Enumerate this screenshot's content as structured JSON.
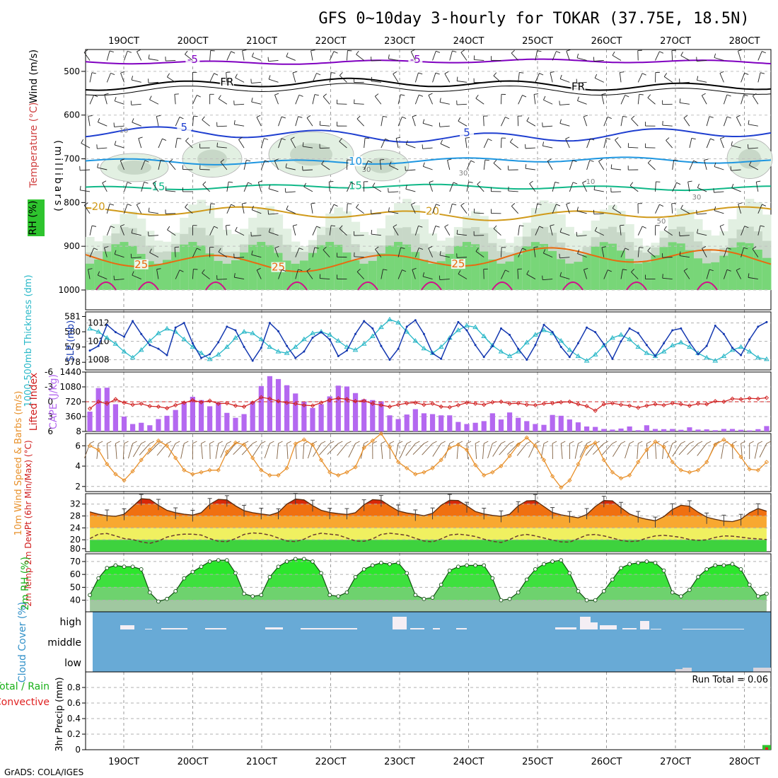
{
  "header": {
    "title": "GFS 0~10day 3-hourly for TOKAR (37.75E, 18.5N)",
    "credit": "GrADS: COLA/IGES"
  },
  "time_axis": {
    "labels": [
      "19OCT",
      "20OCT",
      "21OCT",
      "22OCT",
      "23OCT",
      "24OCT",
      "25OCT",
      "26OCT",
      "27OCT",
      "28OCT"
    ],
    "steps": 80
  },
  "colors": {
    "purple": "#8000c0",
    "black": "#000000",
    "blue": "#1f3fd0",
    "skyblue": "#1e96e0",
    "teal": "#10b888",
    "gold": "#d09a1a",
    "orange": "#e86a10",
    "magenta": "#d0108a",
    "cyan": "#2ab8c8",
    "darkblue": "#1438b0",
    "cape": "#b468f0",
    "li": "#d02020",
    "wind": "#e8902a",
    "barb": "#806040",
    "rh_green": "#2ee02e",
    "cloud_blue": "#68aad6",
    "cloud_white": "#f4eef4"
  },
  "chart_data": [
    {
      "id": "upper_air",
      "type": "area",
      "axis_title_wind": "Wind (m/s)",
      "axis_title_temp": "Temperature (°C)",
      "axis_title_rh": "RH (%)",
      "axis_title_p": "(millibars)",
      "y_ticks": [
        "500",
        "600",
        "700",
        "800",
        "900",
        "1000"
      ],
      "ylim": [
        1000,
        450
      ],
      "isotherms": [
        {
          "label": "-5",
          "p": 478,
          "amp": 6,
          "labels_at": [
            12,
            38
          ],
          "color": "purple"
        },
        {
          "label": "FR",
          "p": 530,
          "amp": 14,
          "labels_at": [
            16,
            57
          ],
          "color": "black"
        },
        {
          "label": "5",
          "p": 645,
          "amp": 18,
          "labels_at": [
            11,
            44
          ],
          "color": "blue"
        },
        {
          "label": "10",
          "p": 705,
          "amp": 9,
          "labels_at": [
            31
          ],
          "color": "skyblue"
        },
        {
          "label": "15",
          "p": 765,
          "amp": 7,
          "labels_at": [
            8,
            31
          ],
          "color": "teal"
        },
        {
          "label": "20",
          "p": 825,
          "amp": 16,
          "labels_at": [
            1,
            40
          ],
          "color": "gold"
        },
        {
          "label": "25",
          "p": 930,
          "amp": 28,
          "labels_at": [
            6,
            22,
            43
          ],
          "color": "orange"
        }
      ],
      "rh_labels": [
        "10",
        "30",
        "30",
        "10",
        "30",
        "50"
      ]
    },
    {
      "id": "thickness_slp",
      "type": "line",
      "ylabel_left": "1000-500mb Thickness (dm)",
      "ylabel_right": "SLP (mb)",
      "left_ticks": [
        "581",
        "580",
        "579",
        "578"
      ],
      "right_ticks": [
        "1012",
        "1010",
        "1008"
      ],
      "series": [
        {
          "name": "Thickness (dm)",
          "color": "cyan",
          "ylim": [
            577.5,
            581.3
          ],
          "values": [
            580.2,
            580.0,
            579.6,
            579.2,
            578.7,
            578.3,
            578.8,
            579.4,
            579.9,
            580.2,
            580.0,
            579.5,
            579.0,
            578.6,
            578.2,
            578.5,
            579.0,
            579.6,
            580.0,
            579.9,
            579.5,
            579.0,
            578.7,
            578.6,
            579.0,
            579.5,
            579.9,
            580.0,
            579.8,
            579.4,
            579.0,
            578.8,
            579.2,
            579.7,
            580.3,
            580.8,
            580.6,
            580.0,
            579.4,
            578.9,
            578.6,
            579.0,
            579.6,
            580.1,
            580.4,
            580.3,
            579.7,
            579.1,
            578.7,
            578.4,
            578.7,
            579.3,
            579.8,
            580.1,
            579.9,
            579.4,
            578.8,
            578.4,
            578.1,
            578.5,
            579.1,
            579.6,
            579.8,
            579.5,
            579.0,
            578.6,
            578.4,
            578.7,
            579.1,
            579.3,
            579.0,
            578.6,
            578.3,
            578.1,
            578.4,
            578.8,
            579.0,
            578.7,
            578.3,
            578.2
          ]
        },
        {
          "name": "SLP (mb)",
          "color": "darkblue",
          "ylim": [
            1006.9,
            1013.2
          ],
          "values": [
            1009.0,
            1009.5,
            1011.8,
            1011.0,
            1010.5,
            1012.2,
            1010.8,
            1009.6,
            1009.2,
            1008.5,
            1011.5,
            1012.0,
            1009.8,
            1008.2,
            1008.6,
            1009.9,
            1011.6,
            1011.2,
            1009.4,
            1007.9,
            1009.3,
            1012.0,
            1011.1,
            1009.5,
            1008.2,
            1008.9,
            1010.4,
            1011.0,
            1010.2,
            1008.4,
            1009.0,
            1010.8,
            1012.2,
            1011.4,
            1009.5,
            1008.0,
            1009.2,
            1011.6,
            1012.3,
            1010.8,
            1008.7,
            1008.1,
            1010.3,
            1012.1,
            1011.2,
            1009.6,
            1008.3,
            1009.5,
            1011.4,
            1010.7,
            1009.2,
            1008.0,
            1009.6,
            1011.8,
            1011.0,
            1009.4,
            1008.3,
            1009.8,
            1011.5,
            1011.0,
            1009.7,
            1008.1,
            1010.0,
            1011.4,
            1010.9,
            1009.6,
            1008.4,
            1009.8,
            1011.2,
            1011.4,
            1009.9,
            1008.6,
            1009.5,
            1011.7,
            1010.8,
            1009.3,
            1008.5,
            1010.2,
            1011.6,
            1012.1
          ]
        }
      ]
    },
    {
      "id": "li_cape",
      "type": "bar",
      "ylabel_left": "Lifted Index",
      "ylabel_right": "CAPE (J/kg)",
      "li_ticks": [
        "-6",
        "-3",
        "0",
        "3",
        "6"
      ],
      "cape_ticks": [
        "1440",
        "1080",
        "720",
        "360",
        "8"
      ],
      "series": [
        {
          "name": "CAPE (J/kg)",
          "color": "cape",
          "ylim": [
            0,
            1440
          ],
          "values": [
            480,
            1050,
            1060,
            660,
            360,
            180,
            210,
            150,
            300,
            380,
            520,
            720,
            840,
            760,
            610,
            700,
            450,
            330,
            420,
            720,
            1100,
            1340,
            1270,
            1120,
            920,
            720,
            570,
            660,
            850,
            1110,
            1090,
            930,
            780,
            760,
            730,
            390,
            300,
            410,
            540,
            440,
            420,
            390,
            390,
            230,
            180,
            210,
            250,
            440,
            290,
            460,
            330,
            250,
            180,
            160,
            400,
            380,
            290,
            220,
            120,
            110,
            60,
            45,
            70,
            120,
            30,
            150,
            60,
            55,
            60,
            40,
            100,
            45,
            50,
            30,
            60,
            60,
            40,
            25,
            55,
            130
          ]
        },
        {
          "name": "Lifted Index",
          "color": "li",
          "ylim": [
            -6,
            6
          ],
          "values": [
            1.4,
            0.0,
            0.4,
            -0.5,
            0.2,
            0.6,
            0.4,
            0.9,
            1.0,
            1.3,
            0.7,
            0.2,
            -0.3,
            0.1,
            -0.2,
            0.4,
            0.3,
            0.8,
            1.0,
            0.2,
            -0.9,
            -0.6,
            -0.1,
            0.2,
            0.4,
            0.7,
            0.8,
            0.2,
            -0.4,
            -0.7,
            -0.5,
            -0.1,
            -0.2,
            0.4,
            0.7,
            1.0,
            0.6,
            0.3,
            0.2,
            0.6,
            0.4,
            1.0,
            1.1,
            0.7,
            0.2,
            0.4,
            0.6,
            0.1,
            0.0,
            0.4,
            0.3,
            0.6,
            0.7,
            0.4,
            0.3,
            0.1,
            0.0,
            0.5,
            0.9,
            1.8,
            0.5,
            0.3,
            0.6,
            0.8,
            1.2,
            0.8,
            0.5,
            0.7,
            0.3,
            0.5,
            0.8,
            0.4,
            0.5,
            -0.1,
            0.0,
            -0.6,
            -0.5,
            -0.7,
            -0.6,
            -0.8
          ]
        }
      ]
    },
    {
      "id": "wind10m",
      "type": "line",
      "ylabel": "10m Wind Speed & Barbs (m/s)",
      "y_ticks": [
        "6",
        "4",
        "2"
      ],
      "series": [
        {
          "name": "Speed (m/s)",
          "color": "wind",
          "ylim": [
            1.5,
            7.2
          ],
          "values": [
            6.0,
            5.6,
            4.2,
            3.2,
            2.6,
            3.5,
            4.6,
            5.6,
            6.5,
            6.0,
            4.8,
            3.6,
            3.2,
            3.4,
            3.6,
            3.6,
            5.4,
            6.3,
            6.1,
            4.8,
            3.6,
            3.1,
            3.1,
            3.8,
            6.2,
            6.6,
            6.1,
            4.6,
            3.4,
            3.1,
            3.4,
            3.9,
            5.8,
            6.5,
            7.2,
            5.9,
            4.4,
            3.8,
            3.2,
            3.4,
            3.8,
            4.6,
            5.8,
            6.1,
            5.6,
            4.1,
            3.1,
            3.4,
            4.0,
            5.0,
            6.1,
            6.8,
            6.0,
            4.6,
            3.0,
            1.9,
            2.6,
            4.2,
            5.9,
            6.3,
            4.6,
            3.4,
            2.8,
            3.1,
            4.4,
            5.6,
            6.4,
            5.9,
            4.4,
            3.6,
            3.4,
            3.6,
            4.4,
            6.1,
            6.6,
            6.0,
            4.9,
            3.7,
            3.6,
            4.4
          ]
        }
      ]
    },
    {
      "id": "temp2m",
      "type": "area",
      "ylabel": "2m Temp 2m DewPt (6hr Min/Max) (°C)",
      "y_ticks": [
        "32",
        "28",
        "24",
        "20",
        "80"
      ],
      "series": [
        {
          "name": "2m Temp",
          "color": "black",
          "ylim": [
            16,
            35.5
          ],
          "values": [
            29.4,
            28.6,
            28.1,
            27.9,
            28.6,
            31.2,
            33.8,
            33.6,
            31.6,
            29.9,
            29.1,
            28.6,
            28.3,
            29.1,
            31.9,
            33.6,
            33.4,
            31.4,
            29.8,
            29.1,
            28.7,
            28.3,
            29.2,
            32.0,
            33.7,
            33.4,
            31.5,
            29.9,
            29.2,
            28.8,
            28.5,
            29.1,
            31.8,
            33.5,
            33.3,
            31.4,
            29.7,
            29.0,
            28.6,
            28.1,
            28.9,
            31.6,
            33.3,
            33.2,
            31.4,
            29.5,
            28.7,
            28.2,
            27.9,
            28.6,
            31.4,
            33.1,
            33.2,
            31.2,
            29.2,
            28.4,
            27.9,
            27.4,
            28.5,
            31.2,
            33.2,
            33.1,
            30.8,
            28.7,
            27.6,
            26.9,
            26.4,
            27.8,
            30.2,
            31.6,
            31.3,
            29.3,
            27.6,
            26.9,
            26.3,
            26.1,
            26.9,
            29.1,
            30.5,
            29.6
          ]
        },
        {
          "name": "2m DewPt",
          "color": "black",
          "ylim": [
            16,
            35.5
          ],
          "values": [
            20.4,
            21.9,
            22.1,
            21.3,
            20.4,
            20.1,
            19.3,
            18.8,
            19.6,
            20.9,
            21.6,
            21.9,
            21.9,
            21.6,
            20.4,
            19.5,
            19.4,
            20.4,
            21.8,
            22.3,
            22.1,
            21.6,
            20.6,
            19.6,
            19.4,
            20.2,
            21.6,
            22.2,
            21.9,
            21.6,
            20.6,
            19.6,
            19.5,
            20.3,
            21.8,
            22.2,
            21.9,
            21.5,
            20.5,
            19.6,
            19.3,
            20.3,
            21.6,
            21.9,
            21.6,
            21.1,
            20.2,
            19.5,
            19.1,
            20.1,
            21.4,
            21.8,
            21.3,
            20.6,
            19.9,
            19.3,
            19.2,
            20.4,
            21.6,
            21.8,
            21.3,
            20.6,
            19.8,
            19.4,
            19.6,
            20.6,
            21.3,
            21.5,
            21.2,
            20.8,
            20.1,
            19.8,
            20.0,
            20.8,
            21.3,
            21.2,
            20.9,
            20.5,
            20.3,
            20.1
          ]
        }
      ]
    },
    {
      "id": "rh2m",
      "type": "area",
      "ylabel": "2m RH (%)",
      "y_ticks": [
        "70",
        "60",
        "50",
        "40"
      ],
      "series": [
        {
          "name": "2m RH",
          "color": "rh_green",
          "ylim": [
            31,
            76
          ],
          "values": [
            44,
            57,
            65,
            67,
            66,
            66,
            64,
            46,
            39,
            41,
            47,
            57,
            62,
            66,
            70,
            71,
            71,
            61,
            45,
            43,
            44,
            58,
            66,
            70,
            72,
            72,
            70,
            61,
            44,
            43,
            46,
            58,
            64,
            67,
            69,
            68,
            69,
            61,
            44,
            41,
            42,
            52,
            63,
            66,
            67,
            67,
            67,
            57,
            40,
            41,
            46,
            56,
            64,
            68,
            70,
            71,
            61,
            47,
            40,
            40,
            47,
            56,
            65,
            68,
            69,
            70,
            69,
            63,
            46,
            43,
            48,
            58,
            64,
            67,
            67,
            68,
            64,
            52,
            43,
            45
          ]
        }
      ]
    },
    {
      "id": "cloud",
      "type": "heatmap",
      "ylabel": "Cloud Cover (%)",
      "levels": [
        "high",
        "middle",
        "low"
      ]
    },
    {
      "id": "precip",
      "type": "bar",
      "ylabel_left": "Total / Rain",
      "ylabel_conv": "Convective",
      "ylabel": "3hr Precip (mm)",
      "y_ticks": [
        "0.8",
        "0.6",
        "0.4",
        "0.2",
        "0"
      ],
      "ylim": [
        0,
        1.0
      ],
      "run_total": "Run Total = 0.06",
      "last_total": 0.06,
      "last_conv": 0.03
    }
  ]
}
